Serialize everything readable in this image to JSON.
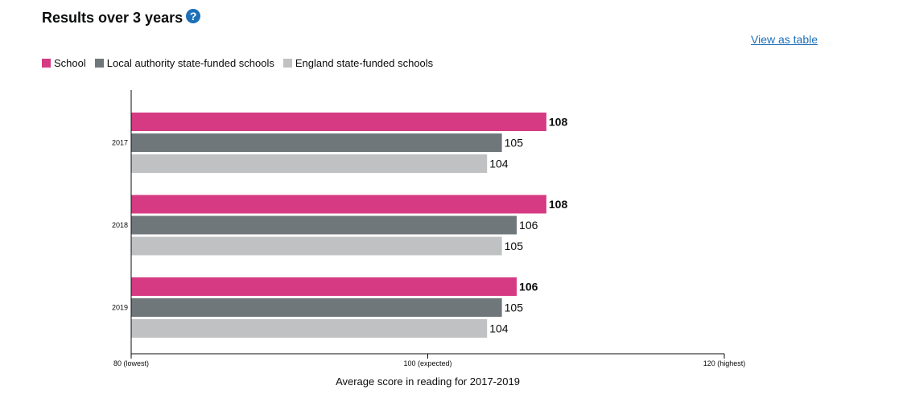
{
  "header": {
    "title": "Results over 3 years",
    "help_icon": "question-mark-icon",
    "view_as_table": "View as table"
  },
  "colors": {
    "school": "#d63a82",
    "local_authority": "#6f777b",
    "england": "#bfc1c3",
    "link": "#1d70b8"
  },
  "chart_data": {
    "type": "bar",
    "orientation": "horizontal",
    "categories": [
      "2017",
      "2018",
      "2019"
    ],
    "series": [
      {
        "name": "School",
        "values": [
          108,
          108,
          106
        ]
      },
      {
        "name": "Local authority state-funded schools",
        "values": [
          105,
          106,
          105
        ]
      },
      {
        "name": "England state-funded schools",
        "values": [
          104,
          105,
          104
        ]
      }
    ],
    "xlim": [
      80,
      120
    ],
    "x_ticks": [
      {
        "value": 80,
        "label": "80 (lowest)"
      },
      {
        "value": 100,
        "label": "100 (expected)"
      },
      {
        "value": 120,
        "label": "120 (highest)"
      }
    ],
    "xlabel": "Average score in reading for 2017-2019",
    "legend_position": "top-left",
    "grid": false
  }
}
